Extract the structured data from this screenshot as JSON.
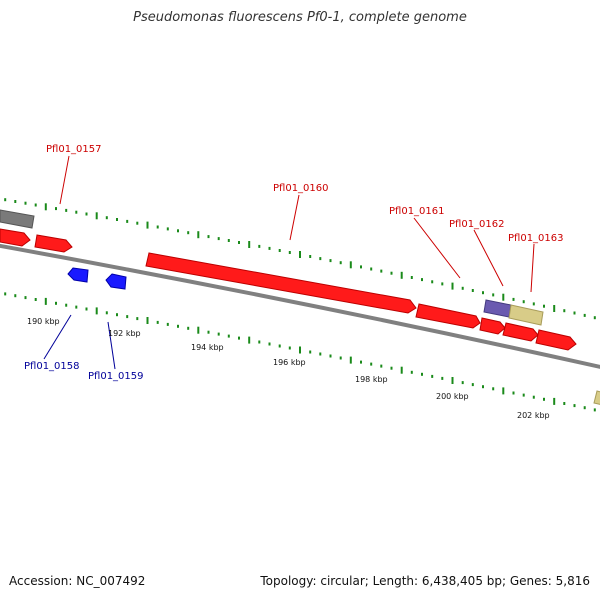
{
  "title": "Pseudomonas fluorescens Pf0-1, complete genome",
  "footer": {
    "accession": "Accession: NC_007492",
    "summary": "Topology: circular; Length: 6,438,405 bp; Genes: 5,816"
  },
  "colors": {
    "forward_gene": "#ff1a1a",
    "reverse_gene": "#1a1aff",
    "gray_gene": "#7a7a7a",
    "purple_gene": "#6a5ab0",
    "khaki_gene": "#d8cc88",
    "backbone": "#808080",
    "tick": "#1a8a1a",
    "forward_label": "#cc0000",
    "reverse_label": "#000099"
  },
  "scale_labels": [
    "190 kbp",
    "192 kbp",
    "194 kbp",
    "196 kbp",
    "198 kbp",
    "200 kbp",
    "202 kbp"
  ],
  "gene_labels": {
    "forward": [
      "Pfl01_0157",
      "Pfl01_0160",
      "Pfl01_0161",
      "Pfl01_0162",
      "Pfl01_0163"
    ],
    "reverse": [
      "Pfl01_0158",
      "Pfl01_0159"
    ]
  }
}
